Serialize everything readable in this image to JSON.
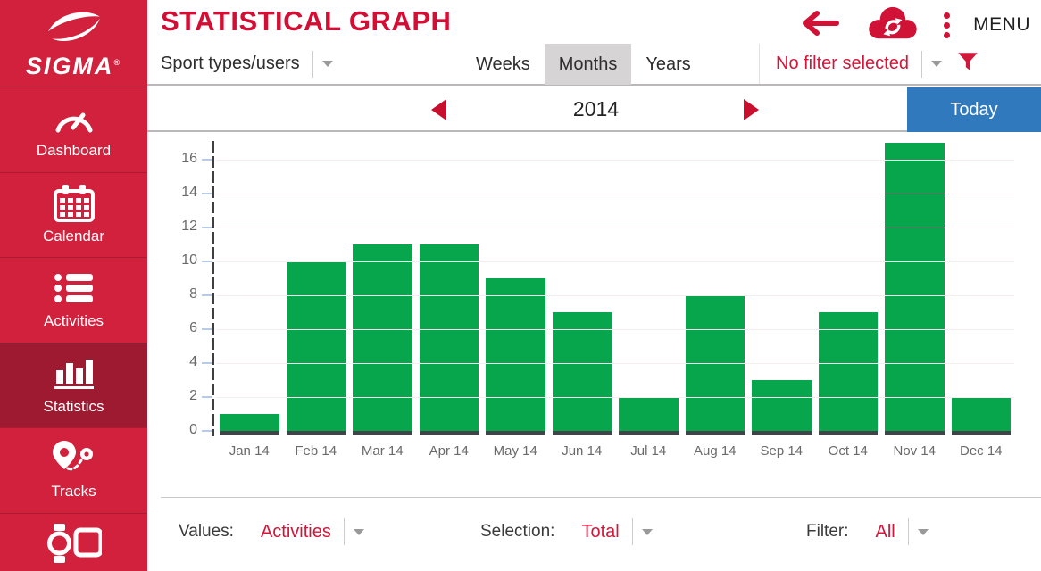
{
  "sidebar": {
    "brand": "SIGMA",
    "brand_reg": "®",
    "items": [
      {
        "label": "Dashboard",
        "active": false
      },
      {
        "label": "Calendar",
        "active": false
      },
      {
        "label": "Activities",
        "active": false
      },
      {
        "label": "Statistics",
        "active": true
      },
      {
        "label": "Tracks",
        "active": false
      },
      {
        "label": "",
        "active": false
      }
    ]
  },
  "header": {
    "title": "STATISTICAL GRAPH",
    "menu_label": "MENU",
    "sport_users_dropdown": "Sport types/users",
    "tabs": [
      {
        "label": "Weeks",
        "active": false
      },
      {
        "label": "Months",
        "active": true
      },
      {
        "label": "Years",
        "active": false
      }
    ],
    "filter_dropdown": "No filter selected"
  },
  "period_nav": {
    "year": "2014",
    "today_label": "Today"
  },
  "chart_data": {
    "type": "bar",
    "title": "",
    "xlabel": "",
    "ylabel": "",
    "categories": [
      "Jan 14",
      "Feb 14",
      "Mar 14",
      "Apr 14",
      "May 14",
      "Jun 14",
      "Jul 14",
      "Aug 14",
      "Sep 14",
      "Oct 14",
      "Nov 14",
      "Dec 14"
    ],
    "values": [
      1,
      10,
      11,
      11,
      9,
      7,
      2,
      8,
      3,
      7,
      17,
      2
    ],
    "yticks": [
      0,
      2,
      4,
      6,
      8,
      10,
      12,
      14,
      16
    ],
    "ylim": [
      0,
      17.5
    ],
    "bar_color": "#07a64c",
    "grid": "faint horizontal gridlines, dashed dark y-axis",
    "legend": "none"
  },
  "footer": {
    "values_label": "Values:",
    "values_value": "Activities",
    "selection_label": "Selection:",
    "selection_value": "Total",
    "filter_label": "Filter:",
    "filter_value": "All"
  },
  "colors": {
    "sidebar_red": "#d1213c",
    "active_item_red": "#9e1a31",
    "accent_red": "#d2173a",
    "title_red": "#d30d33",
    "today_blue": "#3079bd",
    "bar_green": "#07a64c",
    "tab_selected_bg": "#d7d4d6"
  }
}
